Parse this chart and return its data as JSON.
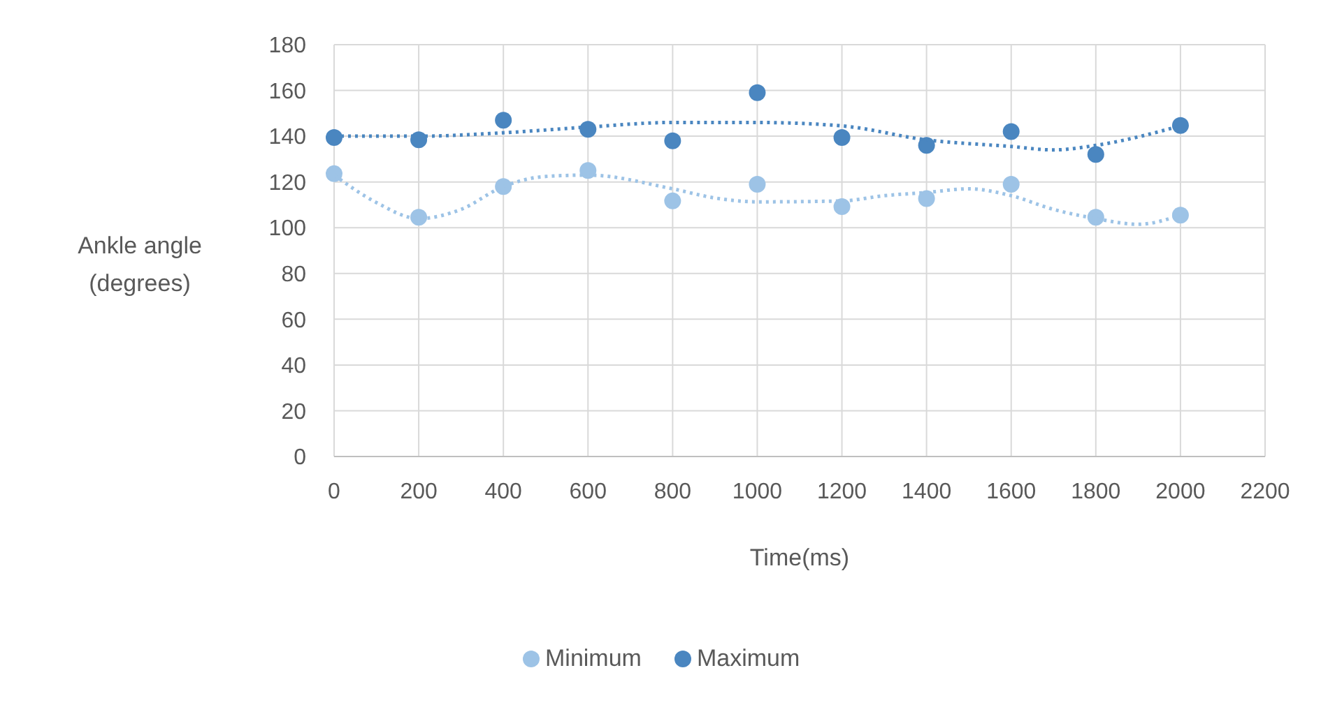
{
  "chart_data": {
    "type": "scatter",
    "xlabel": "Time(ms)",
    "ylabel": "Ankle angle (degrees)",
    "x": [
      0,
      200,
      400,
      600,
      800,
      1000,
      1200,
      1400,
      1600,
      1800,
      2000
    ],
    "xlim": [
      0,
      2200
    ],
    "xticks": [
      0,
      200,
      400,
      600,
      800,
      1000,
      1200,
      1400,
      1600,
      1800,
      2000,
      2200
    ],
    "ylim": [
      0,
      180
    ],
    "yticks": [
      0,
      20,
      40,
      60,
      80,
      100,
      120,
      140,
      160,
      180
    ],
    "grid": true,
    "legend": "bottom",
    "marker": "circle",
    "series": [
      {
        "name": "Minimum",
        "color": "#9dc3e6",
        "values": [
          123.6,
          104.6,
          118,
          125,
          111.7,
          119,
          109.2,
          112.7,
          119,
          104.6,
          105.5
        ]
      },
      {
        "name": "Maximum",
        "color": "#4a86c0",
        "values": [
          139.4,
          138.4,
          147,
          143,
          138,
          159,
          139.4,
          136,
          142,
          132,
          144.7
        ]
      },
      {
        "type": "line",
        "color": "#9dc3e6",
        "line_style": "dotted",
        "marker": "none",
        "x": [
          0,
          100,
          200,
          300,
          400,
          500,
          600,
          800,
          900,
          1000,
          1200,
          1300,
          1400,
          1500,
          1600,
          1700,
          1800,
          1900,
          2000
        ],
        "values": [
          123,
          111,
          104,
          108,
          118,
          122.4,
          123,
          117,
          113,
          111.3,
          111.7,
          114,
          115.4,
          117,
          114,
          108,
          104,
          101.5,
          105.5
        ]
      },
      {
        "type": "line",
        "color": "#4a86c0",
        "line_style": "dotted",
        "marker": "none",
        "x": [
          0,
          200,
          400,
          600,
          800,
          1000,
          1200,
          1400,
          1600,
          1700,
          1800,
          2000
        ],
        "values": [
          140,
          140,
          141.5,
          144,
          146,
          146,
          144.5,
          138.4,
          135.5,
          134,
          136,
          144.5
        ]
      }
    ]
  }
}
